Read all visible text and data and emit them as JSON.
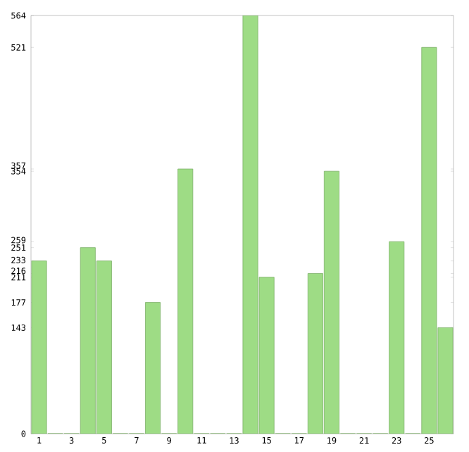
{
  "chart_data": {
    "type": "bar",
    "categories": [
      "1",
      null,
      "3",
      null,
      "5",
      null,
      "7",
      null,
      "9",
      null,
      "11",
      null,
      "13",
      null,
      "15",
      null,
      "17",
      null,
      "19",
      null,
      "21",
      null,
      "23",
      null,
      "25",
      null
    ],
    "values": [
      233,
      0,
      0,
      251,
      233,
      0,
      0,
      177,
      0,
      357,
      0,
      0,
      0,
      564,
      211,
      0,
      0,
      216,
      354,
      0,
      0,
      0,
      259,
      0,
      521,
      143
    ],
    "color": "#9edc85",
    "ylim": [
      0,
      564
    ],
    "yticks": [
      0,
      143,
      177,
      211,
      216,
      233,
      251,
      259,
      354,
      357,
      521,
      564
    ]
  }
}
